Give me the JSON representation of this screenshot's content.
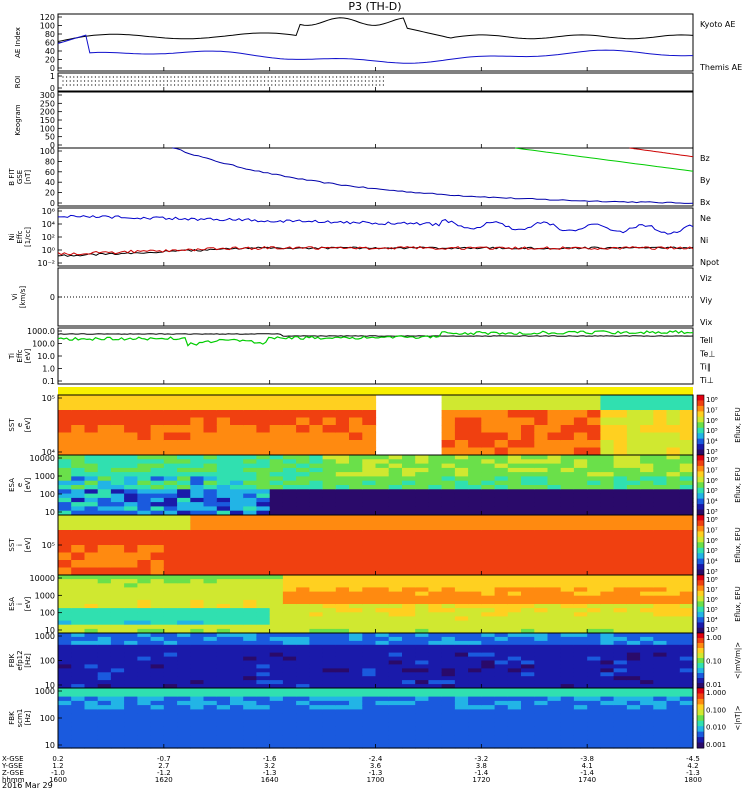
{
  "title": "P3 (TH-D)",
  "date_label": "2016 Mar 29",
  "colors": {
    "kyoto": "#1010cc",
    "themis": "#000000",
    "bz": "#cc0000",
    "by": "#00cc00",
    "bx": "#0000aa",
    "ne": "#cc0000",
    "ni": "#0000cc",
    "npot": "#000000",
    "te": "#000000",
    "ti": "#00cc00"
  },
  "chart_data": {
    "type": "line",
    "x_axis": {
      "row_labels": [
        "X-GSE",
        "Y-GSE",
        "Z-GSE",
        "hhmm"
      ],
      "ticks": [
        {
          "x": "1600",
          "vals": [
            "0.2",
            "1.2",
            "-1.0",
            "1600"
          ]
        },
        {
          "x": "1620",
          "vals": [
            "-0.7",
            "2.7",
            "-1.2",
            "1620"
          ]
        },
        {
          "x": "1640",
          "vals": [
            "-1.6",
            "3.2",
            "-1.3",
            "1640"
          ]
        },
        {
          "x": "1700",
          "vals": [
            "-2.4",
            "3.6",
            "-1.3",
            "1700"
          ]
        },
        {
          "x": "1720",
          "vals": [
            "-3.2",
            "3.8",
            "-1.4",
            "1720"
          ]
        },
        {
          "x": "1740",
          "vals": [
            "-3.8",
            "4.1",
            "-1.4",
            "1740"
          ]
        },
        {
          "x": "1800",
          "vals": [
            "-4.5",
            "4.2",
            "-1.3",
            "1800"
          ]
        }
      ]
    },
    "panels": [
      {
        "id": "ae",
        "ylabel": "AE Index",
        "ylim": [
          0,
          120
        ],
        "ticks": [
          "120",
          "100",
          "80",
          "60",
          "40",
          "20",
          "0"
        ],
        "legend": [
          "Kyoto AE",
          "Themis AE"
        ]
      },
      {
        "id": "roi",
        "ylabel": "ROI",
        "ticks": [
          "1",
          "0"
        ],
        "legend": []
      },
      {
        "id": "keogram",
        "ylabel": "Keogram",
        "ylim": [
          0,
          300
        ],
        "ticks": [
          "300",
          "250",
          "200",
          "150",
          "100",
          "50",
          "0"
        ],
        "legend": []
      },
      {
        "id": "bfit",
        "ylabel": "B FIT\nGSE\n[nT]",
        "ylim": [
          0,
          100
        ],
        "ticks": [
          "100",
          "80",
          "60",
          "40",
          "20",
          "0"
        ],
        "legend": [
          "Bz",
          "By",
          "Bx"
        ]
      },
      {
        "id": "ni",
        "ylabel": "Ni\nEffc\n[1/cc]",
        "ticks": [
          "10⁶",
          "10⁴",
          "10²",
          "10⁰",
          "10⁻²"
        ],
        "legend": [
          "Ne",
          "Ni",
          "Npot"
        ]
      },
      {
        "id": "vi",
        "ylabel": "Vi\n[km/s]",
        "ticks": [
          "0"
        ],
        "legend": [
          "Viz",
          "Viy",
          "Vix"
        ]
      },
      {
        "id": "ti",
        "ylabel": "Ti\nEffc\n[eV]",
        "ticks": [
          "1000.0",
          "100.0",
          "10.0",
          "1.0",
          "0.1"
        ],
        "legend": [
          "Tell",
          "Te⊥",
          "Ti‖",
          "Ti⊥"
        ]
      },
      {
        "id": "sst_e",
        "ylabel": "SST\ne\n[eV]",
        "ticks": [
          "10⁵",
          "10⁴"
        ],
        "cbar_label": "Eflux, EFU",
        "cbar_ticks": [
          "10⁸",
          "10⁷",
          "10⁶",
          "10⁵",
          "10⁴",
          "10³"
        ]
      },
      {
        "id": "esa_e",
        "ylabel": "ESA\ne\n[eV]",
        "ticks": [
          "10000",
          "1000",
          "100",
          "10"
        ],
        "cbar_label": "Eflux, EFU",
        "cbar_ticks": [
          "10⁸",
          "10⁷",
          "10⁶",
          "10⁵",
          "10⁴",
          "10³"
        ]
      },
      {
        "id": "sst_i",
        "ylabel": "SST\ni\n[eV]",
        "ticks": [
          "10⁵"
        ],
        "cbar_label": "Eflux, EFU",
        "cbar_ticks": [
          "10⁸",
          "10⁷",
          "10⁶",
          "10⁵",
          "10⁴",
          "10³"
        ]
      },
      {
        "id": "esa_i",
        "ylabel": "ESA\ni\n[eV]",
        "ticks": [
          "10000",
          "1000",
          "100",
          "10"
        ],
        "cbar_label": "Eflux, EFU",
        "cbar_ticks": [
          "10⁸",
          "10⁷",
          "10⁶",
          "10⁵",
          "10⁴",
          "10³"
        ]
      },
      {
        "id": "fbk_e",
        "ylabel": "FBK\nefp12\n[Hz]",
        "ticks": [
          "1000",
          "100",
          "10"
        ],
        "cbar_label": "<|mV/m|>",
        "cbar_ticks": [
          "1.00",
          "0.10",
          "0.01"
        ]
      },
      {
        "id": "fbk_b",
        "ylabel": "FBK\nscm1\n[Hz]",
        "ticks": [
          "1000",
          "100",
          "10"
        ],
        "cbar_label": "<|nT|>",
        "cbar_ticks": [
          "1.000",
          "0.100",
          "0.010",
          "0.001"
        ]
      }
    ]
  }
}
